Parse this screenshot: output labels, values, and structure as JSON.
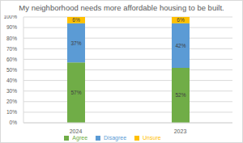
{
  "chart_data": {
    "type": "bar",
    "title": "My neighborhood needs more affordable housing to be built.",
    "categories": [
      "2024",
      "2023"
    ],
    "series": [
      {
        "name": "Agree",
        "color": "#70ad47",
        "values": [
          57,
          52
        ],
        "value_labels": [
          "57%",
          "52%"
        ]
      },
      {
        "name": "Disagree",
        "color": "#5b9bd5",
        "values": [
          37,
          42
        ],
        "value_labels": [
          "37%",
          "42%"
        ]
      },
      {
        "name": "Unsure",
        "color": "#ffc000",
        "values": [
          6,
          6
        ],
        "value_labels": [
          "6%",
          "6%"
        ]
      }
    ],
    "stacked": true,
    "data_labels": true,
    "ylim": [
      0,
      100
    ],
    "yticks": [
      {
        "value": 0,
        "label": "0%"
      },
      {
        "value": 10,
        "label": "10%"
      },
      {
        "value": 20,
        "label": "20%"
      },
      {
        "value": 30,
        "label": "30%"
      },
      {
        "value": 40,
        "label": "40%"
      },
      {
        "value": 50,
        "label": "50%"
      },
      {
        "value": 60,
        "label": "60%"
      },
      {
        "value": 70,
        "label": "70%"
      },
      {
        "value": 80,
        "label": "80%"
      },
      {
        "value": 90,
        "label": "90%"
      },
      {
        "value": 100,
        "label": "100%"
      }
    ],
    "grid": true,
    "legend": "bottom"
  }
}
